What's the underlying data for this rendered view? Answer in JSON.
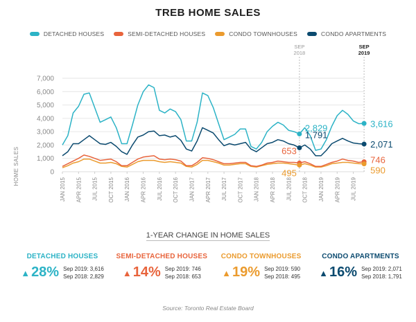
{
  "chart_data": {
    "type": "line",
    "title": "TREB HOME SALES",
    "xlabel": "",
    "ylabel": "HOME SALES",
    "ylim": [
      0,
      7000
    ],
    "yticks": [
      "0",
      "1,000",
      "2,000",
      "3,000",
      "4,000",
      "5,000",
      "6,000",
      "7,000"
    ],
    "ytick_values": [
      0,
      1000,
      2000,
      3000,
      4000,
      5000,
      6000,
      7000
    ],
    "grid": true,
    "legend_position": "top",
    "x_start": "JAN 2015",
    "x_ticks": [
      "JAN 2015",
      "APR 2015",
      "JUL 2015",
      "OCT 2015",
      "JAN 2016",
      "APR 2016",
      "JUL 2016",
      "OCT 2016",
      "JAN 2017",
      "APR 2017",
      "JUL 2017",
      "OCT 2017",
      "JAN 2018",
      "APR 2018",
      "JUL 2018",
      "OCT 2018",
      "JAN 2019",
      "APR 2019",
      "JUL 2019"
    ],
    "x_tick_months": [
      0,
      3,
      6,
      9,
      12,
      15,
      18,
      21,
      24,
      27,
      30,
      33,
      36,
      39,
      42,
      45,
      48,
      51,
      54
    ],
    "series": [
      {
        "name": "DETACHED HOUSES",
        "color": "#2cb3c6",
        "values": [
          2000,
          2700,
          4400,
          4900,
          5800,
          5900,
          4800,
          3700,
          3900,
          4100,
          3300,
          2100,
          2100,
          3500,
          5000,
          6000,
          6500,
          6300,
          4600,
          4400,
          4700,
          4500,
          3900,
          2300,
          2300,
          3700,
          5900,
          5700,
          4800,
          3600,
          2400,
          2600,
          2800,
          3200,
          3200,
          1900,
          1700,
          2200,
          3000,
          3400,
          3700,
          3500,
          3100,
          3000,
          2829,
          3300,
          2700,
          1600,
          1700,
          2400,
          3400,
          4200,
          4600,
          4300,
          3800,
          3600,
          3616
        ]
      },
      {
        "name": "SEMI-DETACHED HOUSES",
        "color": "#e8643c",
        "values": [
          400,
          600,
          800,
          1000,
          1250,
          1150,
          1000,
          850,
          900,
          950,
          750,
          450,
          450,
          700,
          950,
          1100,
          1150,
          1200,
          950,
          900,
          950,
          900,
          800,
          450,
          450,
          700,
          1050,
          1000,
          900,
          750,
          600,
          600,
          650,
          700,
          700,
          450,
          400,
          500,
          650,
          700,
          800,
          750,
          700,
          700,
          653,
          750,
          600,
          400,
          400,
          550,
          700,
          800,
          950,
          850,
          800,
          700,
          746
        ]
      },
      {
        "name": "CONDO TOWNHOUSES",
        "color": "#eb9b2e",
        "values": [
          300,
          450,
          650,
          750,
          950,
          950,
          800,
          650,
          650,
          700,
          600,
          400,
          350,
          550,
          750,
          850,
          850,
          850,
          750,
          700,
          750,
          700,
          650,
          400,
          350,
          550,
          850,
          850,
          750,
          650,
          500,
          500,
          550,
          600,
          600,
          400,
          350,
          450,
          550,
          600,
          650,
          650,
          600,
          550,
          495,
          600,
          500,
          350,
          350,
          450,
          600,
          650,
          700,
          700,
          650,
          600,
          590
        ]
      },
      {
        "name": "CONDO APARTMENTS",
        "color": "#0b4a6f",
        "values": [
          1200,
          1500,
          2100,
          2100,
          2400,
          2700,
          2400,
          2100,
          2050,
          2200,
          1900,
          1500,
          1300,
          2000,
          2600,
          2750,
          3000,
          3050,
          2700,
          2750,
          2600,
          2700,
          2350,
          1700,
          1550,
          2300,
          3300,
          3100,
          2900,
          2400,
          1950,
          2100,
          2000,
          2100,
          2200,
          1700,
          1500,
          1800,
          2100,
          2200,
          2400,
          2300,
          2100,
          2000,
          1791,
          2000,
          1700,
          1200,
          1200,
          1600,
          2100,
          2300,
          2500,
          2300,
          2150,
          2100,
          2071
        ]
      }
    ],
    "markers": [
      {
        "label": "SEP 2018",
        "line1": "SEP",
        "line2": "2018",
        "month": 44
      },
      {
        "label": "SEP 2019",
        "line1": "SEP",
        "line2": "2019",
        "month": 56
      }
    ],
    "annotations": [
      {
        "series": 0,
        "month": 44,
        "text": "2,829"
      },
      {
        "series": 0,
        "month": 56,
        "text": "3,616"
      },
      {
        "series": 3,
        "month": 44,
        "text": "1,791"
      },
      {
        "series": 3,
        "month": 56,
        "text": "2,071"
      },
      {
        "series": 1,
        "month": 44,
        "text": "653"
      },
      {
        "series": 1,
        "month": 56,
        "text": "746"
      },
      {
        "series": 2,
        "month": 44,
        "text": "495"
      },
      {
        "series": 2,
        "month": 56,
        "text": "590"
      }
    ]
  },
  "legend": [
    {
      "label": "DETACHED HOUSES",
      "color": "#2cb3c6"
    },
    {
      "label": "SEMI-DETACHED HOUSES",
      "color": "#e8643c"
    },
    {
      "label": "CONDO TOWNHOUSES",
      "color": "#eb9b2e"
    },
    {
      "label": "CONDO APARTMENTS",
      "color": "#0b4a6f"
    }
  ],
  "change_section": {
    "title": "1-YEAR CHANGE IN HOME SALES",
    "items": [
      {
        "name": "DETACHED HOUSES",
        "color": "#2cb3c6",
        "arrow": "▲",
        "pct": "28%",
        "line1": "Sep 2019: 3,616",
        "line2": "Sep 2018: 2,829"
      },
      {
        "name": "SEMI-DETACHED HOUSES",
        "color": "#e8643c",
        "arrow": "▲",
        "pct": "14%",
        "line1": "Sep 2019: 746",
        "line2": "Sep 2018: 653"
      },
      {
        "name": "CONDO TOWNHOUSES",
        "color": "#eb9b2e",
        "arrow": "▲",
        "pct": "19%",
        "line1": "Sep 2019: 590",
        "line2": "Sep 2018: 495"
      },
      {
        "name": "CONDO APARTMENTS",
        "color": "#0b4a6f",
        "arrow": "▲",
        "pct": "16%",
        "line1": "Sep 2019: 2,071",
        "line2": "Sep 2018: 1,791"
      }
    ]
  },
  "source": "Source: Toronto Real Estate Board"
}
